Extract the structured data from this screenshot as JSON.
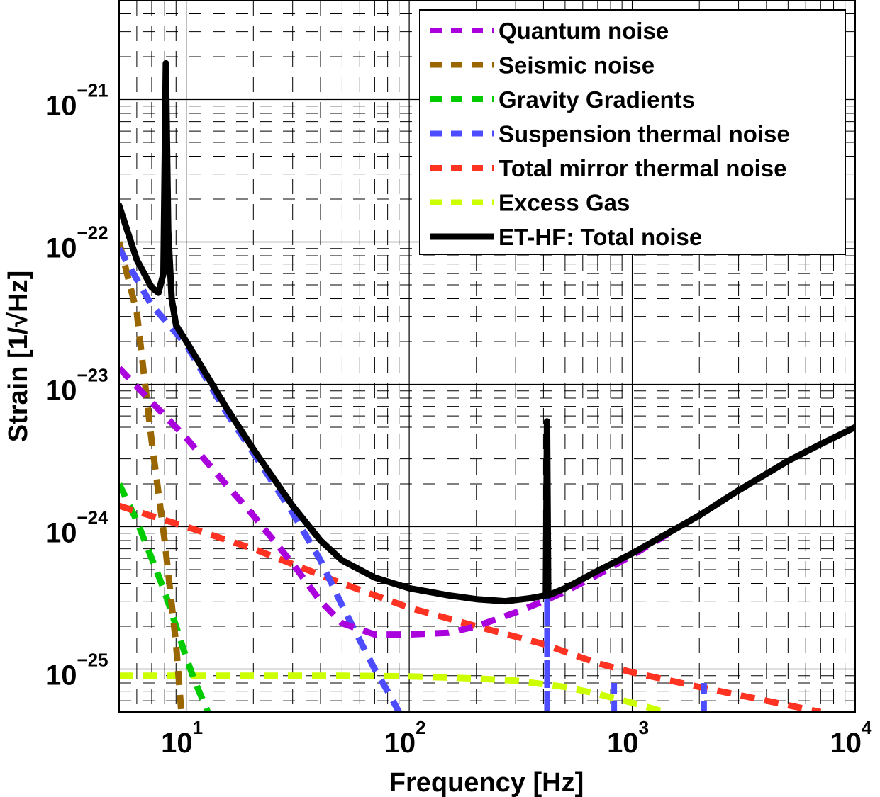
{
  "chart_data": {
    "type": "line",
    "title": "",
    "xlabel": "Frequency [Hz]",
    "ylabel": "Strain [1/√Hz]",
    "xscale": "log",
    "yscale": "log",
    "xlim": [
      5,
      10000
    ],
    "ylim": [
      5e-26,
      5e-21
    ],
    "grid": "major and minor (dashed)",
    "legend_position": "top-right",
    "x_ticks": [
      {
        "value": 10,
        "base": "10",
        "exp": "1"
      },
      {
        "value": 100,
        "base": "10",
        "exp": "2"
      },
      {
        "value": 1000,
        "base": "10",
        "exp": "3"
      },
      {
        "value": 10000,
        "base": "10",
        "exp": "4"
      }
    ],
    "y_ticks": [
      {
        "value": 1e-21,
        "base": "10",
        "exp": "−21"
      },
      {
        "value": 1e-22,
        "base": "10",
        "exp": "−22"
      },
      {
        "value": 1e-23,
        "base": "10",
        "exp": "−23"
      },
      {
        "value": 1e-24,
        "base": "10",
        "exp": "−24"
      },
      {
        "value": 1e-25,
        "base": "10",
        "exp": "−25"
      }
    ],
    "series": [
      {
        "name": "Quantum noise",
        "color": "#aa00dd",
        "style": "dashed",
        "x": [
          5,
          7,
          10,
          15,
          20,
          30,
          40,
          50,
          70,
          100,
          150,
          200,
          300,
          400,
          500,
          700,
          1000,
          1500
        ],
        "y": [
          1.3e-23,
          7.5e-24,
          4.2e-24,
          2e-24,
          1.2e-24,
          5.5e-25,
          3e-25,
          2.1e-25,
          1.75e-25,
          1.75e-25,
          1.8e-25,
          2e-25,
          2.5e-25,
          3e-25,
          3.5e-25,
          4.6e-25,
          6.3e-25,
          9.2e-25
        ]
      },
      {
        "name": "Seismic noise",
        "color": "#996600",
        "style": "dashed",
        "x": [
          5,
          6,
          7,
          8,
          9,
          9.5
        ],
        "y": [
          1e-22,
          3.2e-23,
          4e-24,
          8e-25,
          1.5e-25,
          5e-26
        ]
      },
      {
        "name": "Gravity Gradients",
        "color": "#00cc00",
        "style": "dashed",
        "x": [
          5,
          6,
          7,
          8,
          9,
          10,
          11,
          12.5
        ],
        "y": [
          2e-24,
          1.1e-24,
          6e-25,
          3.5e-25,
          2e-25,
          1.2e-25,
          8e-26,
          5e-26
        ]
      },
      {
        "name": "Suspension thermal noise",
        "color": "#4d4dff",
        "style": "dashed",
        "x": [
          5,
          7,
          10,
          15,
          20,
          30,
          40,
          50,
          60,
          70,
          80,
          90
        ],
        "y": [
          9e-23,
          3.6e-23,
          1.9e-23,
          6.5e-24,
          3.3e-24,
          1.25e-24,
          5.8e-25,
          2.8e-25,
          1.6e-25,
          1e-25,
          7e-26,
          5e-26
        ],
        "resonances_hz": [
          415,
          830,
          2100
        ]
      },
      {
        "name": "Total mirror thermal noise",
        "color": "#ff3322",
        "style": "dashed",
        "x": [
          5,
          10,
          20,
          50,
          100,
          200,
          400,
          700,
          1000,
          2000,
          4000,
          7000
        ],
        "y": [
          1.4e-24,
          1e-24,
          7e-25,
          4e-25,
          2.7e-25,
          2e-25,
          1.5e-25,
          1.1e-25,
          9.5e-26,
          7.5e-26,
          6e-26,
          5e-26
        ]
      },
      {
        "name": "Excess Gas",
        "color": "#ccff00",
        "style": "dashed",
        "x": [
          5,
          20,
          50,
          100,
          200,
          300,
          500,
          700,
          1000,
          1400
        ],
        "y": [
          9e-26,
          9e-26,
          9e-26,
          8.9e-26,
          8.6e-26,
          8.3e-26,
          7.5e-26,
          6.7e-26,
          5.8e-26,
          5e-26
        ]
      },
      {
        "name": "ET-HF: Total noise",
        "color": "#000000",
        "style": "solid",
        "x": [
          5,
          6,
          7,
          7.5,
          7.9,
          8.1,
          8.3,
          8.6,
          9,
          10,
          12,
          15,
          20,
          30,
          40,
          50,
          70,
          100,
          150,
          200,
          270,
          350,
          410,
          415,
          420,
          500,
          700,
          1000,
          1500,
          2000,
          3000,
          5000,
          7000,
          10000
        ],
        "y": [
          1.8e-22,
          7.5e-23,
          4.8e-23,
          4.4e-23,
          6e-23,
          1.8e-21,
          1.2e-22,
          4e-23,
          2.6e-23,
          2e-23,
          1.25e-23,
          7e-24,
          3.5e-24,
          1.4e-24,
          8e-25,
          5.8e-25,
          4.4e-25,
          3.7e-25,
          3.3e-25,
          3.1e-25,
          3e-25,
          3.15e-25,
          3.3e-25,
          5.5e-24,
          3.3e-25,
          3.7e-25,
          4.9e-25,
          6.5e-25,
          9.3e-25,
          1.2e-24,
          1.8e-24,
          2.9e-24,
          3.8e-24,
          5e-24
        ]
      }
    ]
  }
}
